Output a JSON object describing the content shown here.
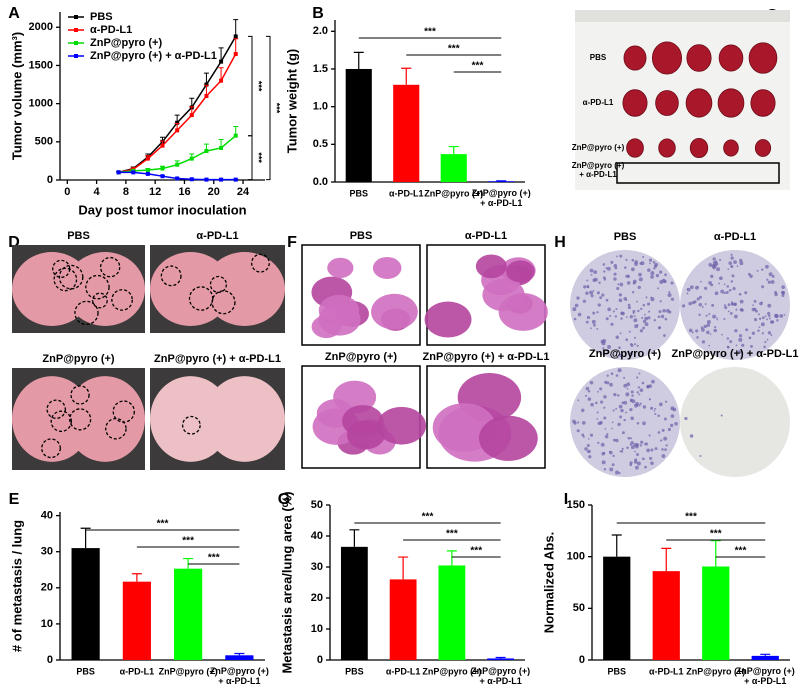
{
  "panel_letters": [
    "A",
    "B",
    "C",
    "D",
    "E",
    "F",
    "G",
    "H",
    "I"
  ],
  "chart_data": [
    {
      "type": "line",
      "xlabel": "Day post tumor inoculation",
      "ylabel": "Tumor volume (mm³)",
      "x": [
        7,
        9,
        11,
        13,
        15,
        17,
        19,
        21,
        23
      ],
      "xlim": [
        -1,
        27
      ],
      "xticks": [
        0,
        4,
        8,
        12,
        16,
        20,
        24
      ],
      "ylim": [
        0,
        2200
      ],
      "yticks": [
        0,
        500,
        1000,
        1500,
        2000
      ],
      "legend": "upper left",
      "series": [
        {
          "name": "PBS",
          "color": "#000000",
          "values": [
            100,
            150,
            300,
            500,
            750,
            950,
            1250,
            1550,
            1880
          ],
          "errors": [
            10,
            20,
            40,
            60,
            100,
            120,
            150,
            180,
            220
          ]
        },
        {
          "name": "α-PD-L1",
          "color": "#ff0000",
          "values": [
            100,
            140,
            280,
            450,
            650,
            850,
            1100,
            1300,
            1650
          ],
          "errors": [
            10,
            20,
            40,
            60,
            90,
            110,
            140,
            170,
            200
          ]
        },
        {
          "name": "ZnP@pyro (+)",
          "color": "#00dd00",
          "values": [
            100,
            120,
            130,
            150,
            200,
            280,
            380,
            420,
            580
          ],
          "errors": [
            10,
            10,
            20,
            30,
            50,
            60,
            90,
            110,
            120
          ]
        },
        {
          "name": "ZnP@pyro (+) + α-PD-L1",
          "color": "#0000ff",
          "values": [
            100,
            100,
            80,
            50,
            20,
            10,
            5,
            5,
            5
          ],
          "errors": [
            5,
            5,
            5,
            5,
            5,
            5,
            5,
            5,
            5
          ]
        }
      ],
      "annotations": [
        "***",
        "***",
        "***"
      ]
    },
    {
      "type": "bar",
      "ylabel": "Tumor weight (g)",
      "categories": [
        "PBS",
        "α-PD-L1",
        "ZnP@pyro (+)",
        "ZnP@pyro (+)\n+ α-PD-L1"
      ],
      "values": [
        1.5,
        1.29,
        0.37,
        0.01
      ],
      "errors": [
        0.22,
        0.22,
        0.1,
        0.005
      ],
      "colors": [
        "#000000",
        "#ff0000",
        "#00ff00",
        "#0000ff"
      ],
      "ylim": [
        0,
        2.15
      ],
      "yticks": [
        {
          "value": 0,
          "label": "0.0"
        },
        0.5,
        {
          "value": 1,
          "label": "1.0"
        },
        1.5,
        {
          "value": 2,
          "label": "2.0"
        }
      ],
      "annotations": [
        "***",
        "***",
        "***"
      ]
    },
    {
      "type": "bar",
      "ylabel": "# of metastasis / lung",
      "categories": [
        "PBS",
        "α-PD-L1",
        "ZnP@pyro (+)",
        "ZnP@pyro (+)\n+ α-PD-L1"
      ],
      "values": [
        31,
        21.7,
        25.3,
        1.3
      ],
      "errors": [
        5.5,
        2.2,
        2.8,
        0.5
      ],
      "colors": [
        "#000000",
        "#ff0000",
        "#00ff00",
        "#0000ff"
      ],
      "ylim": [
        0,
        41
      ],
      "yticks": [
        0,
        10,
        20,
        30,
        40
      ],
      "annotations": [
        "***",
        "***",
        "***"
      ]
    },
    {
      "type": "bar",
      "ylabel": "Metastasis area/lung area (%)",
      "categories": [
        "PBS",
        "α-PD-L1",
        "ZnP@pyro (+)",
        "ZnP@pyro (+)\n+ α-PD-L1"
      ],
      "values": [
        36.5,
        26,
        30.5,
        0.5
      ],
      "errors": [
        5.5,
        7.2,
        4.7,
        0.3
      ],
      "colors": [
        "#000000",
        "#ff0000",
        "#00ff00",
        "#0000ff"
      ],
      "ylim": [
        0,
        50
      ],
      "yticks": [
        0,
        10,
        20,
        30,
        40,
        50
      ],
      "annotations": [
        "***",
        "***",
        "***"
      ]
    },
    {
      "type": "bar",
      "ylabel": "Normalized Abs.",
      "categories": [
        "PBS",
        "α-PD-L1",
        "ZnP@pyro (+)",
        "ZnP@pyro (+)\n+ α-PD-L1"
      ],
      "values": [
        100,
        86,
        90.5,
        4
      ],
      "errors": [
        21,
        22,
        25,
        1.5
      ],
      "colors": [
        "#000000",
        "#ff0000",
        "#00ff00",
        "#0000ff"
      ],
      "ylim": [
        0,
        150
      ],
      "yticks": [
        0,
        50,
        100,
        150
      ],
      "annotations": [
        "***",
        "***",
        "***"
      ]
    }
  ],
  "images": {
    "C": {
      "labels": [
        "PBS",
        "α-PD-L1",
        "ZnP@pyro (+)",
        "ZnP@pyro (+)\n+ α-PD-L1"
      ]
    },
    "D": {
      "labels": [
        "PBS",
        "α-PD-L1",
        "ZnP@pyro (+)",
        "ZnP@pyro (+) + α-PD-L1"
      ]
    },
    "F": {
      "labels": [
        "PBS",
        "α-PD-L1",
        "ZnP@pyro (+)",
        "ZnP@pyro (+) + α-PD-L1"
      ]
    },
    "H": {
      "labels": [
        "PBS",
        "α-PD-L1",
        "ZnP@pyro (+)",
        "ZnP@pyro (+) + α-PD-L1"
      ]
    }
  }
}
